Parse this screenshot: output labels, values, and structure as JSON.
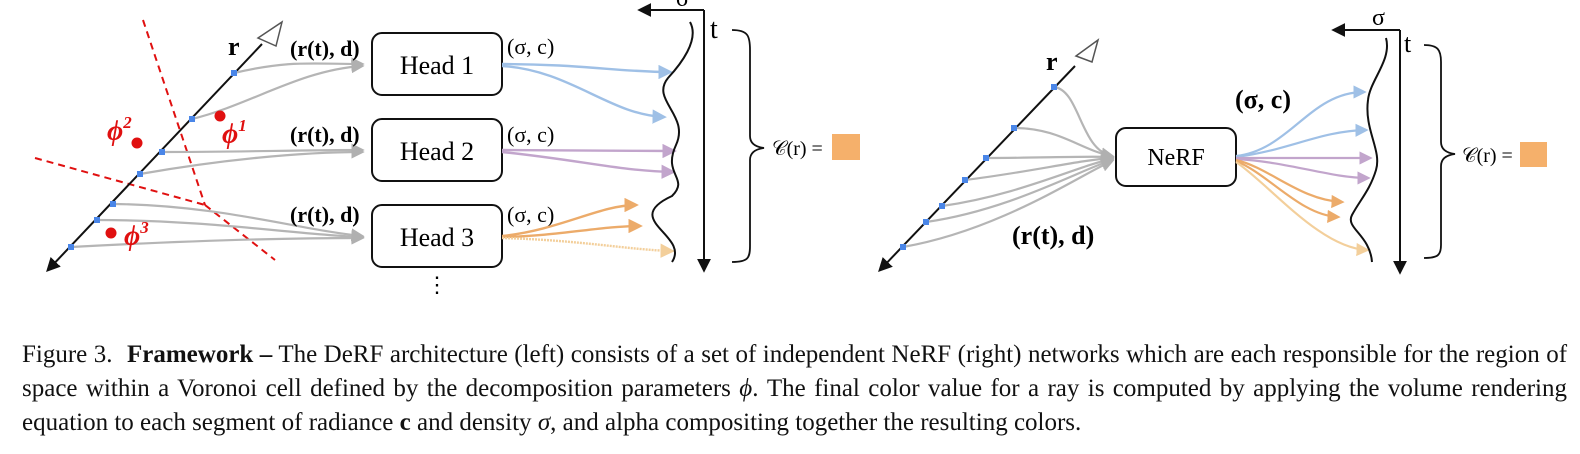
{
  "figure": {
    "left": {
      "ray_label": "r",
      "input_label": "(r(t), d)",
      "output_label": "(σ, c)",
      "heads": [
        "Head 1",
        "Head 2",
        "Head 3"
      ],
      "more": "⋮",
      "phi_labels": [
        {
          "sym": "ϕ",
          "sup": "1"
        },
        {
          "sym": "ϕ",
          "sup": "2"
        },
        {
          "sym": "ϕ",
          "sup": "3"
        }
      ],
      "sigma_label": "σ",
      "t_label": "t",
      "color_eq": "𝒞(r) ="
    },
    "right": {
      "ray_label": "r",
      "network": "NeRF",
      "input_label": "(r(t), d)",
      "output_label": "(σ, c)",
      "sigma_label": "σ",
      "t_label": "t",
      "color_eq": "𝒞(r) ="
    },
    "colors": {
      "swatch": "#f5b06b",
      "point_marker": "#4a86e8",
      "phi": "#e01010",
      "voronoi_line": "#e01010",
      "input_arrows": "#b0b0b0",
      "out_blue": "#9fc0e6",
      "out_purple": "#c2a5cc",
      "out_orange": "#ecab6a",
      "out_light_orange": "#f3cf9b"
    }
  },
  "caption": {
    "label": "Figure 3.",
    "title": "Framework –",
    "text_1": "The DeRF architecture (left) consists of a set of independent NeRF (right) networks which are each responsible for the region of space within a Voronoi cell defined by the decomposition parameters ",
    "phi": "ϕ",
    "text_2": ". The final color value for a ray is computed by applying the volume rendering equation to each segment of radiance ",
    "c": "c",
    "text_3": " and density ",
    "sigma": "σ",
    "text_4": ", and alpha compositing together the resulting colors."
  }
}
